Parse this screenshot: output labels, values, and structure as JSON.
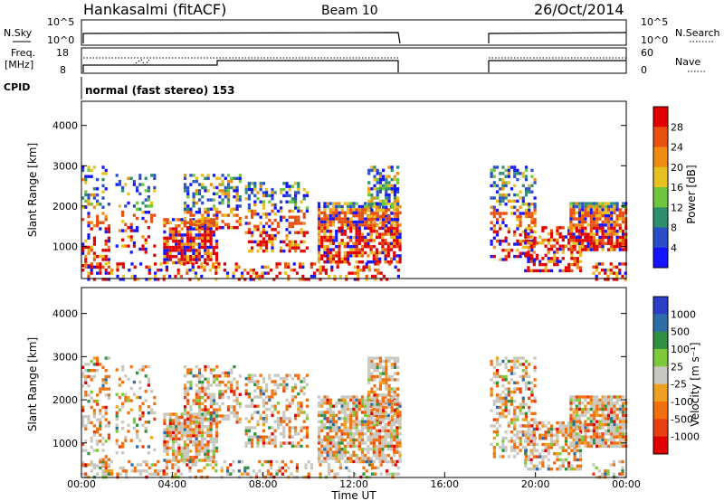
{
  "header": {
    "station": "Hankasalmi (fitACF)",
    "beam": "Beam 10",
    "date": "26/Oct/2014"
  },
  "panels": {
    "sky": {
      "label": "N.Sky",
      "ticks_left": [
        "10^5",
        "10^0"
      ],
      "right_label": "N.Search",
      "ticks_right": [
        "10^5",
        "10^0"
      ]
    },
    "freq": {
      "label1": "Freq.",
      "label2": "[MHz]",
      "ticks_left": [
        "18",
        "8"
      ],
      "right_label": "Nave",
      "ticks_right": [
        "60",
        "0"
      ]
    },
    "cpid": {
      "label": "CPID",
      "value": "normal (fast stereo) 153"
    }
  },
  "colors": {
    "power": [
      "#1414ff",
      "#2a4fc8",
      "#2e8f6e",
      "#6fc83c",
      "#e8c020",
      "#f08c10",
      "#e85010",
      "#e00000"
    ],
    "velocity": [
      "#2a3ec8",
      "#2e6ea8",
      "#2e9040",
      "#7ec83c",
      "#c8c8c0",
      "#f0a020",
      "#f07010",
      "#e84010",
      "#e00000"
    ]
  },
  "chart_data": [
    {
      "type": "heatmap",
      "name": "power",
      "ylabel": "Slant Range [km]",
      "yticks": [
        "1000",
        "2000",
        "3000",
        "4000"
      ],
      "ylim": [
        200,
        4600
      ],
      "xlim": [
        0,
        24
      ],
      "colorbar": {
        "label": "Power [dB]",
        "ticks": [
          "4",
          "8",
          "12",
          "16",
          "20",
          "24",
          "28"
        ],
        "range": [
          0,
          30
        ]
      },
      "gaps": [
        [
          14.1,
          17.9
        ]
      ]
    },
    {
      "type": "heatmap",
      "name": "velocity",
      "ylabel": "Slant Range [km]",
      "yticks": [
        "1000",
        "2000",
        "3000",
        "4000"
      ],
      "ylim": [
        200,
        4600
      ],
      "xlim": [
        0,
        24
      ],
      "xlabel": "Time UT",
      "xticks": [
        "00:00",
        "04:00",
        "08:00",
        "12:00",
        "16:00",
        "20:00",
        "00:00"
      ],
      "colorbar": {
        "label": "Velocity [m s⁻¹]",
        "ticks": [
          "1000",
          "500",
          "100",
          "25",
          "-25",
          "-100",
          "-500",
          "-1000"
        ]
      },
      "gaps": [
        [
          14.1,
          17.9
        ]
      ]
    }
  ]
}
